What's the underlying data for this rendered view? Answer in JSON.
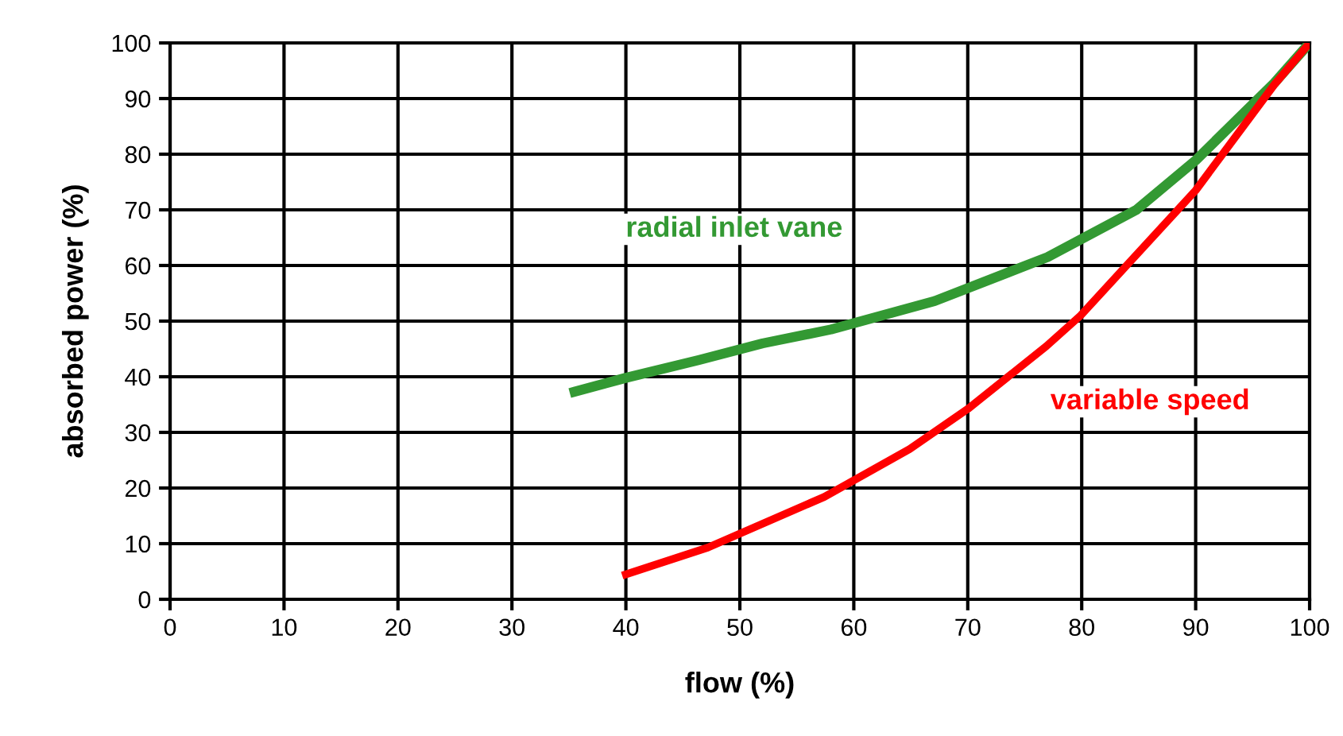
{
  "chart_data": {
    "type": "line",
    "xlabel": "flow (%)",
    "ylabel": "absorbed power (%)",
    "xlim": [
      0,
      100
    ],
    "xticks": [
      0,
      10,
      20,
      30,
      40,
      50,
      60,
      70,
      80,
      90,
      100
    ],
    "ylim": [
      0,
      100
    ],
    "yticks": [
      0,
      10,
      20,
      30,
      40,
      50,
      60,
      70,
      80,
      90,
      100
    ],
    "grid": true,
    "legend": false,
    "marker": "none",
    "line_style": "solid",
    "series": [
      {
        "name": "radial inlet vane",
        "color": "#339933",
        "x": [
          35.5,
          40,
          46.4,
          52,
          58,
          67.1,
          77,
          84.8,
          90,
          96.9,
          100
        ],
        "values": [
          37.3,
          39.8,
          43,
          46,
          48.5,
          53.6,
          61.5,
          70,
          78.9,
          92.8,
          100
        ]
      },
      {
        "name": "variable speed",
        "color": "#ff0000",
        "x": [
          40,
          47.2,
          50,
          57.4,
          64.9,
          70,
          76.9,
          79.9,
          90,
          96.9,
          100
        ],
        "values": [
          4.5,
          9.3,
          11.8,
          18.4,
          27,
          34.2,
          45.5,
          51,
          73.5,
          92.5,
          100
        ]
      }
    ]
  }
}
